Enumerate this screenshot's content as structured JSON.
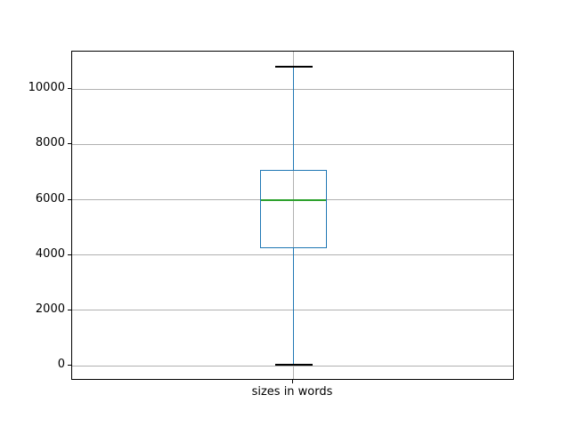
{
  "colors": {
    "background": "#ffffff",
    "axis": "#000000",
    "grid": "#b0b0b0",
    "box": "#1f77b4",
    "whisker": "#1f77b4",
    "cap": "#000000",
    "median": "#2ca02c",
    "text": "#000000"
  },
  "chart_data": {
    "type": "boxplot",
    "title": "",
    "xlabel": "",
    "ylabel": "",
    "categories": [
      "sizes in words"
    ],
    "series": [
      {
        "name": "sizes in words",
        "whisker_low": 40,
        "q1": 4250,
        "median": 5990,
        "q3": 7070,
        "whisker_high": 10820,
        "outliers": []
      }
    ],
    "yticks": [
      0,
      2000,
      4000,
      6000,
      8000,
      10000
    ],
    "ylim": [
      -540,
      11355
    ],
    "grid": true,
    "legend_position": "none"
  }
}
